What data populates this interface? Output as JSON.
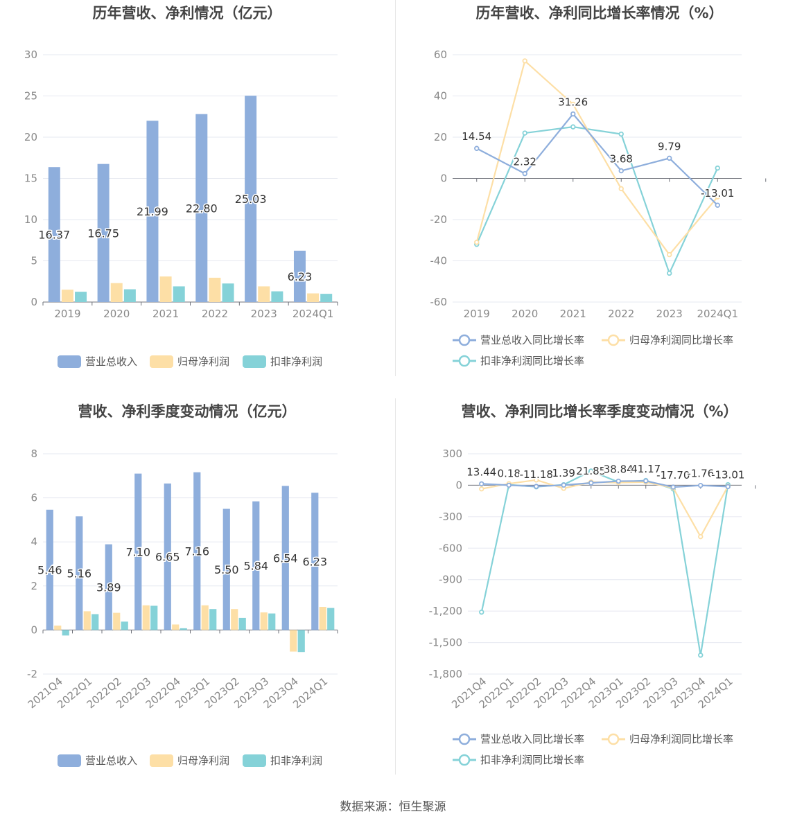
{
  "source_text": "数据来源：恒生聚源",
  "chart_data": [
    {
      "type": "bar",
      "title": "历年营收、净利情况（亿元）",
      "categories": [
        "2019",
        "2020",
        "2021",
        "2022",
        "2023",
        "2024Q1"
      ],
      "ylim": [
        0,
        30
      ],
      "yticks": [
        "0",
        "5",
        "10",
        "15",
        "20",
        "25",
        "30"
      ],
      "grid": true,
      "legend_position": "bottom",
      "series": [
        {
          "name": "营业总收入",
          "color": "#8eaedc",
          "values": [
            16.37,
            16.75,
            21.99,
            22.8,
            25.03,
            6.23
          ],
          "labels": [
            "16.37",
            "16.75",
            "21.99",
            "22.80",
            "25.03",
            "6.23"
          ]
        },
        {
          "name": "归母净利润",
          "color": "#fddfa6",
          "values": [
            1.5,
            2.3,
            3.1,
            2.95,
            1.9,
            1.05
          ]
        },
        {
          "name": "扣非净利润",
          "color": "#85d2d8",
          "values": [
            1.25,
            1.55,
            1.9,
            2.25,
            1.3,
            1.0
          ]
        }
      ]
    },
    {
      "type": "line",
      "title": "历年营收、净利同比增长率情况（%）",
      "categories": [
        "2019",
        "2020",
        "2021",
        "2022",
        "2023",
        "2024Q1"
      ],
      "ylim": [
        -60,
        60
      ],
      "yticks": [
        "-60",
        "-40",
        "-20",
        "0",
        "20",
        "40",
        "60"
      ],
      "grid": true,
      "legend_position": "bottom",
      "series": [
        {
          "name": "营业总收入同比增长率",
          "color": "#8eaedc",
          "values": [
            14.54,
            2.32,
            31.26,
            3.68,
            9.79,
            -13.01
          ],
          "labels": [
            "14.54",
            "2.32",
            "31.26",
            "3.68",
            "9.79",
            "-13.01"
          ]
        },
        {
          "name": "归母净利润同比增长率",
          "color": "#fddfa6",
          "values": [
            -31,
            57,
            36,
            -5,
            -37,
            -9
          ]
        },
        {
          "name": "扣非净利润同比增长率",
          "color": "#85d2d8",
          "values": [
            -32,
            22,
            25,
            21.5,
            -46,
            5
          ]
        }
      ]
    },
    {
      "type": "bar",
      "title": "营收、净利季度变动情况（亿元）",
      "categories": [
        "2021Q4",
        "2022Q1",
        "2022Q2",
        "2022Q3",
        "2022Q4",
        "2023Q1",
        "2023Q2",
        "2023Q3",
        "2023Q4",
        "2024Q1"
      ],
      "ylim": [
        -2,
        8
      ],
      "yticks": [
        "-2",
        "0",
        "2",
        "4",
        "6",
        "8"
      ],
      "grid": true,
      "legend_position": "bottom",
      "series": [
        {
          "name": "营业总收入",
          "color": "#8eaedc",
          "values": [
            5.46,
            5.16,
            3.89,
            7.1,
            6.65,
            7.16,
            5.5,
            5.84,
            6.54,
            6.23
          ],
          "labels": [
            "5.46",
            "5.16",
            "3.89",
            "7.10",
            "6.65",
            "7.16",
            "5.50",
            "5.84",
            "6.54",
            "6.23"
          ]
        },
        {
          "name": "归母净利润",
          "color": "#fddfa6",
          "values": [
            0.2,
            0.85,
            0.78,
            1.12,
            0.25,
            1.12,
            0.95,
            0.8,
            -0.98,
            1.05
          ]
        },
        {
          "name": "扣非净利润",
          "color": "#85d2d8",
          "values": [
            -0.25,
            0.72,
            0.38,
            1.1,
            0.08,
            0.95,
            0.55,
            0.75,
            -1.0,
            1.0
          ]
        }
      ]
    },
    {
      "type": "line",
      "title": "营收、净利同比增长率季度变动情况（%）",
      "categories": [
        "2021Q4",
        "2022Q1",
        "2022Q2",
        "2022Q3",
        "2022Q4",
        "2023Q1",
        "2023Q2",
        "2023Q3",
        "2023Q4",
        "2024Q1"
      ],
      "ylim": [
        -1800,
        300
      ],
      "yticks": [
        "-1,800",
        "-1,500",
        "-1,200",
        "-900",
        "-600",
        "-300",
        "0",
        "300"
      ],
      "grid": true,
      "legend_position": "bottom",
      "series": [
        {
          "name": "营业总收入同比增长率",
          "color": "#8eaedc",
          "values": [
            13.44,
            0.18,
            -11.18,
            1.39,
            21.85,
            38.84,
            41.17,
            -17.7,
            -1.76,
            -13.01
          ],
          "labels": [
            "13.44",
            "0.18",
            "-11.18",
            "1.39",
            "21.85",
            "38.84",
            "41.17",
            "-17.70",
            "-1.76",
            "-13.01"
          ]
        },
        {
          "name": "归母净利润同比增长率",
          "color": "#fddfa6",
          "values": [
            -35,
            15,
            50,
            -30,
            30,
            25,
            30,
            -25,
            -490,
            -10
          ]
        },
        {
          "name": "扣非净利润同比增长率",
          "color": "#85d2d8",
          "values": [
            -1210,
            5,
            -15,
            5,
            135,
            30,
            45,
            -35,
            -1620,
            5
          ]
        }
      ]
    }
  ]
}
